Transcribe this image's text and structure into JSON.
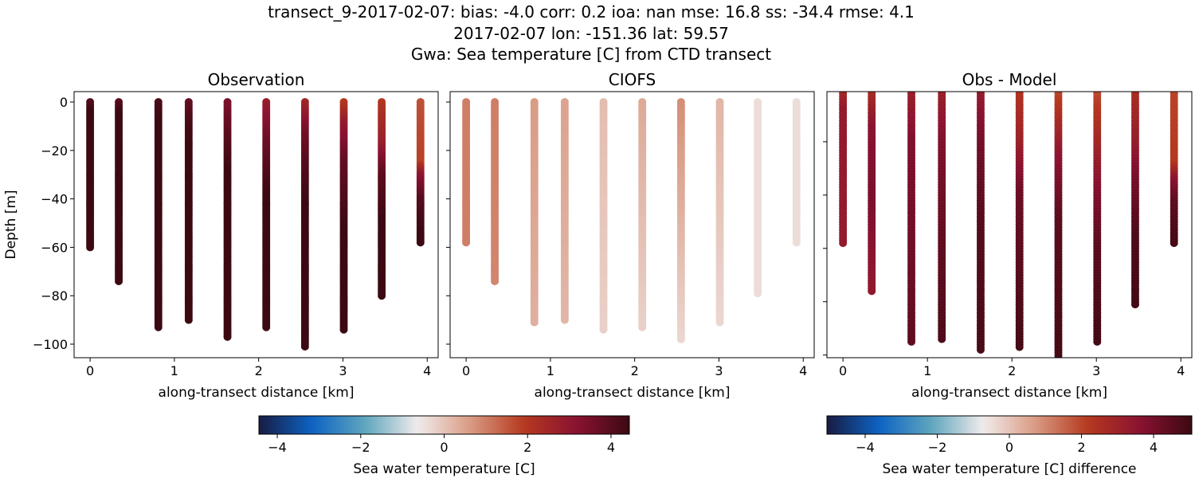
{
  "title_lines": [
    "transect_9-2017-02-07: bias: -4.0  corr: 0.2  ioa: nan  mse: 16.8  ss: -34.4  rmse: 4.1",
    "2017-02-07 lon: -151.36 lat: 59.57",
    "Gwa: Sea temperature [C] from CTD transect"
  ],
  "colormap": [
    "#181c43",
    "#0d63c3",
    "#5ea5bd",
    "#f1ecec",
    "#d99a83",
    "#b5391f",
    "#8a1231",
    "#3c0912"
  ],
  "chart_data": [
    {
      "type": "scatter",
      "title": "Observation",
      "xlabel": "along-transect distance [km]",
      "ylabel": "Depth [m]",
      "xlim": [
        -0.19,
        4.13
      ],
      "ylim": [
        -105.6,
        4.3
      ],
      "xticks": [
        0,
        1,
        2,
        3,
        4
      ],
      "yticks": [
        0,
        -20,
        -40,
        -60,
        -80,
        -100
      ],
      "show_yticklabels": true,
      "clim": [
        -4.44,
        4.44
      ],
      "profiles": [
        {
          "x": 0.0,
          "bottom": 60,
          "value_stops": [
            [
              0,
              4.0
            ],
            [
              5,
              4.6
            ],
            [
              60,
              4.7
            ]
          ]
        },
        {
          "x": 0.34,
          "bottom": 74,
          "value_stops": [
            [
              0,
              4.0
            ],
            [
              6,
              4.6
            ],
            [
              74,
              4.7
            ]
          ]
        },
        {
          "x": 0.81,
          "bottom": 93,
          "value_stops": [
            [
              0,
              4.2
            ],
            [
              10,
              4.5
            ],
            [
              93,
              4.7
            ]
          ]
        },
        {
          "x": 1.17,
          "bottom": 90,
          "value_stops": [
            [
              0,
              3.8
            ],
            [
              10,
              4.3
            ],
            [
              30,
              4.6
            ],
            [
              90,
              4.7
            ]
          ]
        },
        {
          "x": 1.63,
          "bottom": 97,
          "value_stops": [
            [
              0,
              3.4
            ],
            [
              15,
              4.0
            ],
            [
              30,
              4.5
            ],
            [
              97,
              4.7
            ]
          ]
        },
        {
          "x": 2.09,
          "bottom": 93,
          "value_stops": [
            [
              0,
              2.8
            ],
            [
              15,
              3.6
            ],
            [
              40,
              4.5
            ],
            [
              93,
              4.7
            ]
          ]
        },
        {
          "x": 2.55,
          "bottom": 101,
          "value_stops": [
            [
              0,
              2.5
            ],
            [
              12,
              3.5
            ],
            [
              25,
              4.0
            ],
            [
              45,
              4.5
            ],
            [
              101,
              4.7
            ]
          ]
        },
        {
          "x": 3.01,
          "bottom": 94,
          "value_stops": [
            [
              0,
              1.9
            ],
            [
              8,
              2.8
            ],
            [
              25,
              3.8
            ],
            [
              60,
              4.6
            ],
            [
              94,
              4.7
            ]
          ]
        },
        {
          "x": 3.46,
          "bottom": 80,
          "value_stops": [
            [
              0,
              2.0
            ],
            [
              18,
              2.8
            ],
            [
              30,
              3.9
            ],
            [
              55,
              4.6
            ],
            [
              80,
              4.7
            ]
          ]
        },
        {
          "x": 3.92,
          "bottom": 58,
          "value_stops": [
            [
              0,
              1.6
            ],
            [
              25,
              1.8
            ],
            [
              30,
              3.0
            ],
            [
              40,
              4.0
            ],
            [
              58,
              4.6
            ]
          ]
        }
      ]
    },
    {
      "type": "scatter",
      "title": "CIOFS",
      "xlabel": "along-transect distance [km]",
      "ylabel": "",
      "xlim": [
        -0.19,
        4.13
      ],
      "ylim": [
        -105.6,
        4.3
      ],
      "xticks": [
        0,
        1,
        2,
        3,
        4
      ],
      "yticks": [
        0,
        -20,
        -40,
        -60,
        -80,
        -100
      ],
      "show_yticklabels": false,
      "clim": [
        -4.44,
        4.44
      ],
      "profiles": [
        {
          "x": 0.0,
          "bottom": 58,
          "value_stops": [
            [
              0,
              1.0
            ],
            [
              58,
              1.0
            ]
          ]
        },
        {
          "x": 0.34,
          "bottom": 74,
          "value_stops": [
            [
              0,
              1.0
            ],
            [
              74,
              0.9
            ]
          ]
        },
        {
          "x": 0.81,
          "bottom": 91,
          "value_stops": [
            [
              0,
              0.6
            ],
            [
              91,
              0.3
            ]
          ]
        },
        {
          "x": 1.17,
          "bottom": 90,
          "value_stops": [
            [
              0,
              0.5
            ],
            [
              90,
              0.2
            ]
          ]
        },
        {
          "x": 1.63,
          "bottom": 94,
          "value_stops": [
            [
              0,
              0.1
            ],
            [
              94,
              -0.2
            ]
          ]
        },
        {
          "x": 2.09,
          "bottom": 93,
          "value_stops": [
            [
              0,
              0.4
            ],
            [
              93,
              -0.2
            ]
          ]
        },
        {
          "x": 2.55,
          "bottom": 98,
          "value_stops": [
            [
              0,
              0.8
            ],
            [
              98,
              -0.3
            ]
          ]
        },
        {
          "x": 3.01,
          "bottom": 91,
          "value_stops": [
            [
              0,
              0.2
            ],
            [
              91,
              -0.3
            ]
          ]
        },
        {
          "x": 3.46,
          "bottom": 79,
          "value_stops": [
            [
              0,
              -0.4
            ],
            [
              79,
              -0.4
            ]
          ]
        },
        {
          "x": 3.92,
          "bottom": 58,
          "value_stops": [
            [
              0,
              -0.4
            ],
            [
              58,
              -0.4
            ]
          ]
        }
      ]
    },
    {
      "type": "scatter",
      "title": "Obs - Model",
      "xlabel": "along-transect distance [km]",
      "ylabel": "",
      "xlim": [
        -0.19,
        4.13
      ],
      "ylim": [
        -101,
        -1.2
      ],
      "xticks": [
        0,
        1,
        2,
        3,
        4
      ],
      "yticks": [
        -20,
        -40,
        -60,
        -80,
        -100
      ],
      "show_yticklabels": false,
      "clim": [
        -5.06,
        5.06
      ],
      "profiles": [
        {
          "x": 0.0,
          "bottom": 58,
          "value_stops": [
            [
              0,
              2.6
            ],
            [
              8,
              3.3
            ],
            [
              58,
              3.3
            ]
          ]
        },
        {
          "x": 0.34,
          "bottom": 76,
          "value_stops": [
            [
              0,
              2.5
            ],
            [
              15,
              3.6
            ],
            [
              40,
              3.9
            ],
            [
              76,
              3.4
            ]
          ]
        },
        {
          "x": 0.81,
          "bottom": 95,
          "value_stops": [
            [
              0,
              3.0
            ],
            [
              20,
              3.8
            ],
            [
              95,
              4.4
            ]
          ]
        },
        {
          "x": 1.17,
          "bottom": 94,
          "value_stops": [
            [
              0,
              3.0
            ],
            [
              20,
              3.8
            ],
            [
              60,
              4.4
            ],
            [
              94,
              4.7
            ]
          ]
        },
        {
          "x": 1.63,
          "bottom": 98,
          "value_stops": [
            [
              0,
              3.2
            ],
            [
              20,
              4.0
            ],
            [
              50,
              4.6
            ],
            [
              98,
              4.8
            ]
          ]
        },
        {
          "x": 2.09,
          "bottom": 97,
          "value_stops": [
            [
              0,
              2.3
            ],
            [
              20,
              3.0
            ],
            [
              40,
              4.2
            ],
            [
              97,
              4.9
            ]
          ]
        },
        {
          "x": 2.55,
          "bottom": 102,
          "value_stops": [
            [
              0,
              1.8
            ],
            [
              25,
              3.5
            ],
            [
              50,
              4.5
            ],
            [
              102,
              4.9
            ]
          ]
        },
        {
          "x": 3.01,
          "bottom": 95,
          "value_stops": [
            [
              0,
              1.8
            ],
            [
              20,
              2.8
            ],
            [
              40,
              3.8
            ],
            [
              60,
              4.5
            ],
            [
              95,
              4.9
            ]
          ]
        },
        {
          "x": 3.46,
          "bottom": 81,
          "value_stops": [
            [
              0,
              2.5
            ],
            [
              20,
              3.2
            ],
            [
              35,
              4.0
            ],
            [
              55,
              4.7
            ],
            [
              81,
              4.9
            ]
          ]
        },
        {
          "x": 3.92,
          "bottom": 58,
          "value_stops": [
            [
              0,
              2.0
            ],
            [
              28,
              2.2
            ],
            [
              34,
              3.5
            ],
            [
              42,
              4.4
            ],
            [
              58,
              4.9
            ]
          ]
        }
      ]
    }
  ],
  "colorbars": [
    {
      "label": "Sea water temperature [C]",
      "range": [
        -4.44,
        4.44
      ],
      "ticks": [
        -4,
        -2,
        0,
        2,
        4
      ]
    },
    {
      "label": "Sea water temperature [C] difference",
      "range": [
        -5.06,
        5.06
      ],
      "ticks": [
        -4,
        -2,
        0,
        2,
        4
      ]
    }
  ]
}
